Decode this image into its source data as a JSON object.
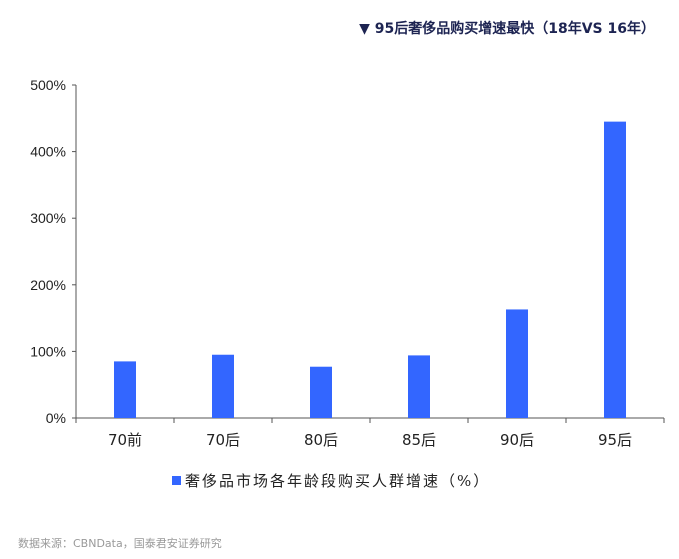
{
  "title": "▼ 95后奢侈品购买增速最快（18年VS 16年）",
  "source": "数据来源：CBNData，国泰君安证券研究",
  "colors": {
    "bar": "#3366ff",
    "title": "#1d2452",
    "axis": "#555555"
  },
  "chart_data": {
    "type": "bar",
    "title": "95后奢侈品购买增速最快（18年VS 16年）",
    "categories": [
      "70前",
      "70后",
      "80后",
      "85后",
      "90后",
      "95后"
    ],
    "series": [
      {
        "name": "奢侈品市场各年龄段购买人群增速（%）",
        "values": [
          85,
          95,
          77,
          94,
          163,
          445
        ]
      }
    ],
    "unit": "%",
    "ylim": [
      0,
      500
    ],
    "yticks": [
      "0%",
      "100%",
      "200%",
      "300%",
      "400%",
      "500%"
    ],
    "grid": false,
    "legend": "bottom"
  }
}
